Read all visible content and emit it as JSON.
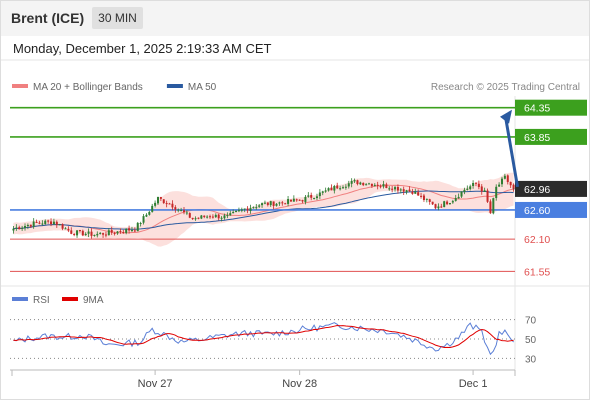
{
  "header": {
    "instrument": "Brent (ICE)",
    "timeframe": "30 MIN"
  },
  "datetime": "Monday, December 1, 2025 2:19:33 AM CET",
  "legend": [
    {
      "label": "MA 20 + Bollinger Bands",
      "color": "#f08080"
    },
    {
      "label": "MA 50",
      "color": "#2a5aa0"
    }
  ],
  "copyright": "Research © 2025 Trading Central",
  "rsi_legend": [
    {
      "label": "RSI",
      "color": "#5b7fd6"
    },
    {
      "label": "9MA",
      "color": "#e00000"
    }
  ],
  "colors": {
    "up": "#2e7d32",
    "down": "#c62828",
    "resistance": "#3ca01e",
    "pivot": "#4a7fe0",
    "support": "#e05050",
    "arrow": "#2a5aa0"
  },
  "chart_data": {
    "type": "candlestick",
    "y_range": [
      61.35,
      64.55
    ],
    "x_tick_labels": [
      {
        "label": "Nov 27",
        "bar": 49
      },
      {
        "label": "Nov 28",
        "bar": 99
      },
      {
        "label": "Dec 1",
        "bar": 159
      }
    ],
    "levels": [
      {
        "value": 64.35,
        "label": "64.35",
        "kind": "resistance"
      },
      {
        "value": 63.85,
        "label": "63.85",
        "kind": "resistance"
      },
      {
        "value": 62.6,
        "label": "62.60",
        "kind": "pivot"
      },
      {
        "value": 62.1,
        "label": "62.10",
        "kind": "support"
      },
      {
        "value": 61.55,
        "label": "61.55",
        "kind": "support"
      }
    ],
    "last_price": {
      "value": 62.96,
      "label": "62.96"
    },
    "forecast_target": 64.35,
    "candle_keypoints": [
      [
        0,
        62.28
      ],
      [
        8,
        62.38
      ],
      [
        14,
        62.4
      ],
      [
        20,
        62.22
      ],
      [
        28,
        62.18
      ],
      [
        35,
        62.22
      ],
      [
        42,
        62.28
      ],
      [
        46,
        62.52
      ],
      [
        50,
        62.8
      ],
      [
        55,
        62.68
      ],
      [
        62,
        62.45
      ],
      [
        68,
        62.5
      ],
      [
        74,
        62.48
      ],
      [
        80,
        62.62
      ],
      [
        86,
        62.7
      ],
      [
        92,
        62.72
      ],
      [
        100,
        62.78
      ],
      [
        106,
        62.88
      ],
      [
        112,
        63.0
      ],
      [
        118,
        63.08
      ],
      [
        124,
        63.05
      ],
      [
        130,
        63.0
      ],
      [
        138,
        62.92
      ],
      [
        146,
        62.65
      ],
      [
        152,
        62.78
      ],
      [
        156,
        62.95
      ],
      [
        160,
        63.05
      ],
      [
        163,
        62.9
      ],
      [
        165,
        62.55
      ],
      [
        167,
        62.98
      ],
      [
        170,
        63.15
      ],
      [
        173,
        62.96
      ]
    ],
    "rsi": {
      "levels": [
        70,
        50,
        30
      ],
      "keypoints": [
        [
          0,
          47
        ],
        [
          6,
          51
        ],
        [
          12,
          53
        ],
        [
          18,
          52
        ],
        [
          24,
          54
        ],
        [
          28,
          50
        ],
        [
          32,
          44
        ],
        [
          38,
          45
        ],
        [
          44,
          47
        ],
        [
          48,
          60
        ],
        [
          52,
          55
        ],
        [
          58,
          47
        ],
        [
          64,
          49
        ],
        [
          70,
          52
        ],
        [
          76,
          55
        ],
        [
          82,
          56
        ],
        [
          88,
          55
        ],
        [
          94,
          57
        ],
        [
          100,
          60
        ],
        [
          106,
          62
        ],
        [
          112,
          64
        ],
        [
          118,
          62
        ],
        [
          124,
          60
        ],
        [
          130,
          58
        ],
        [
          136,
          52
        ],
        [
          142,
          45
        ],
        [
          146,
          40
        ],
        [
          150,
          44
        ],
        [
          154,
          52
        ],
        [
          158,
          64
        ],
        [
          162,
          58
        ],
        [
          164,
          40
        ],
        [
          166,
          35
        ],
        [
          168,
          55
        ],
        [
          170,
          56
        ],
        [
          173,
          50
        ]
      ]
    }
  }
}
